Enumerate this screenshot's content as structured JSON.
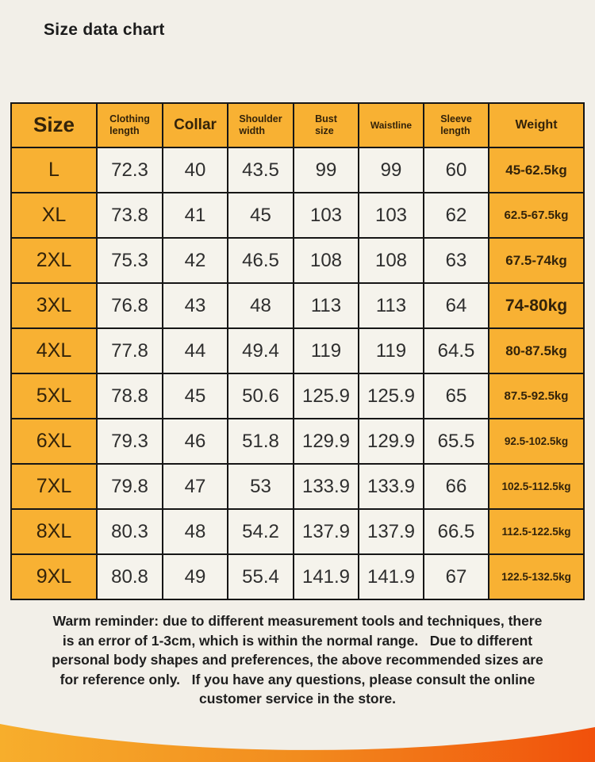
{
  "page": {
    "title": "Size data chart",
    "background_color": "#F2EFE8"
  },
  "table": {
    "columns": [
      {
        "id": "size",
        "label": "Size"
      },
      {
        "id": "clothing-length",
        "label": "Clothing\nlength"
      },
      {
        "id": "collar",
        "label": "Collar"
      },
      {
        "id": "shoulder-width",
        "label": "Shoulder\nwidth"
      },
      {
        "id": "bust-size",
        "label": "Bust\nsize"
      },
      {
        "id": "waistline",
        "label": "Waistline"
      },
      {
        "id": "sleeve-length",
        "label": "Sleeve\nlength"
      },
      {
        "id": "weight",
        "label": "Weight"
      }
    ],
    "rows": [
      {
        "cells": [
          "L",
          "72.3",
          "40",
          "43.5",
          "99",
          "99",
          "60",
          "45-62.5kg"
        ]
      },
      {
        "cells": [
          "XL",
          "73.8",
          "41",
          "45",
          "103",
          "103",
          "62",
          "62.5-67.5kg"
        ]
      },
      {
        "cells": [
          "2XL",
          "75.3",
          "42",
          "46.5",
          "108",
          "108",
          "63",
          "67.5-74kg"
        ]
      },
      {
        "cells": [
          "3XL",
          "76.8",
          "43",
          "48",
          "113",
          "113",
          "64",
          "74-80kg"
        ]
      },
      {
        "cells": [
          "4XL",
          "77.8",
          "44",
          "49.4",
          "119",
          "119",
          "64.5",
          "80-87.5kg"
        ]
      },
      {
        "cells": [
          "5XL",
          "78.8",
          "45",
          "50.6",
          "125.9",
          "125.9",
          "65",
          "87.5-92.5kg"
        ]
      },
      {
        "cells": [
          "6XL",
          "79.3",
          "46",
          "51.8",
          "129.9",
          "129.9",
          "65.5",
          "92.5-102.5kg"
        ]
      },
      {
        "cells": [
          "7XL",
          "79.8",
          "47",
          "53",
          "133.9",
          "133.9",
          "66",
          "102.5-112.5kg"
        ]
      },
      {
        "cells": [
          "8XL",
          "80.3",
          "48",
          "54.2",
          "137.9",
          "137.9",
          "66.5",
          "112.5-122.5kg"
        ]
      },
      {
        "cells": [
          "9XL",
          "80.8",
          "49",
          "55.4",
          "141.9",
          "141.9",
          "67",
          "122.5-132.5kg"
        ]
      }
    ],
    "colors": {
      "header_background": "#F8B133",
      "cell_background": "#F5F3EC",
      "border": "#161616",
      "header_text": "#33230A",
      "number_text": "#2E2E2E"
    }
  },
  "footer": {
    "lines": [
      "Warm reminder: due to different measurement tools and techniques, there",
      "is an error of 1-3cm, which is within the normal range.   Due to different",
      "personal body shapes and preferences, the above recommended sizes are",
      "for reference only.   If you have any questions, please consult the online",
      "customer service in the store."
    ]
  },
  "wave": {
    "gradient_left": "#F7AE2C",
    "gradient_mid": "#F28C1E",
    "gradient_right": "#F1500B"
  },
  "chart_data": {
    "type": "table",
    "title": "Size data chart",
    "columns": [
      "Size",
      "Clothing length",
      "Collar",
      "Shoulder width",
      "Bust size",
      "Waistline",
      "Sleeve length",
      "Weight"
    ],
    "rows": [
      [
        "L",
        72.3,
        40,
        43.5,
        99,
        99,
        60,
        "45-62.5kg"
      ],
      [
        "XL",
        73.8,
        41,
        45,
        103,
        103,
        62,
        "62.5-67.5kg"
      ],
      [
        "2XL",
        75.3,
        42,
        46.5,
        108,
        108,
        63,
        "67.5-74kg"
      ],
      [
        "3XL",
        76.8,
        43,
        48,
        113,
        113,
        64,
        "74-80kg"
      ],
      [
        "4XL",
        77.8,
        44,
        49.4,
        119,
        119,
        64.5,
        "80-87.5kg"
      ],
      [
        "5XL",
        78.8,
        45,
        50.6,
        125.9,
        125.9,
        65,
        "87.5-92.5kg"
      ],
      [
        "6XL",
        79.3,
        46,
        51.8,
        129.9,
        129.9,
        65.5,
        "92.5-102.5kg"
      ],
      [
        "7XL",
        79.8,
        47,
        53,
        133.9,
        133.9,
        66,
        "102.5-112.5kg"
      ],
      [
        "8XL",
        80.3,
        48,
        54.2,
        137.9,
        137.9,
        66.5,
        "112.5-122.5kg"
      ],
      [
        "9XL",
        80.8,
        49,
        55.4,
        141.9,
        141.9,
        67,
        "122.5-132.5kg"
      ]
    ]
  }
}
